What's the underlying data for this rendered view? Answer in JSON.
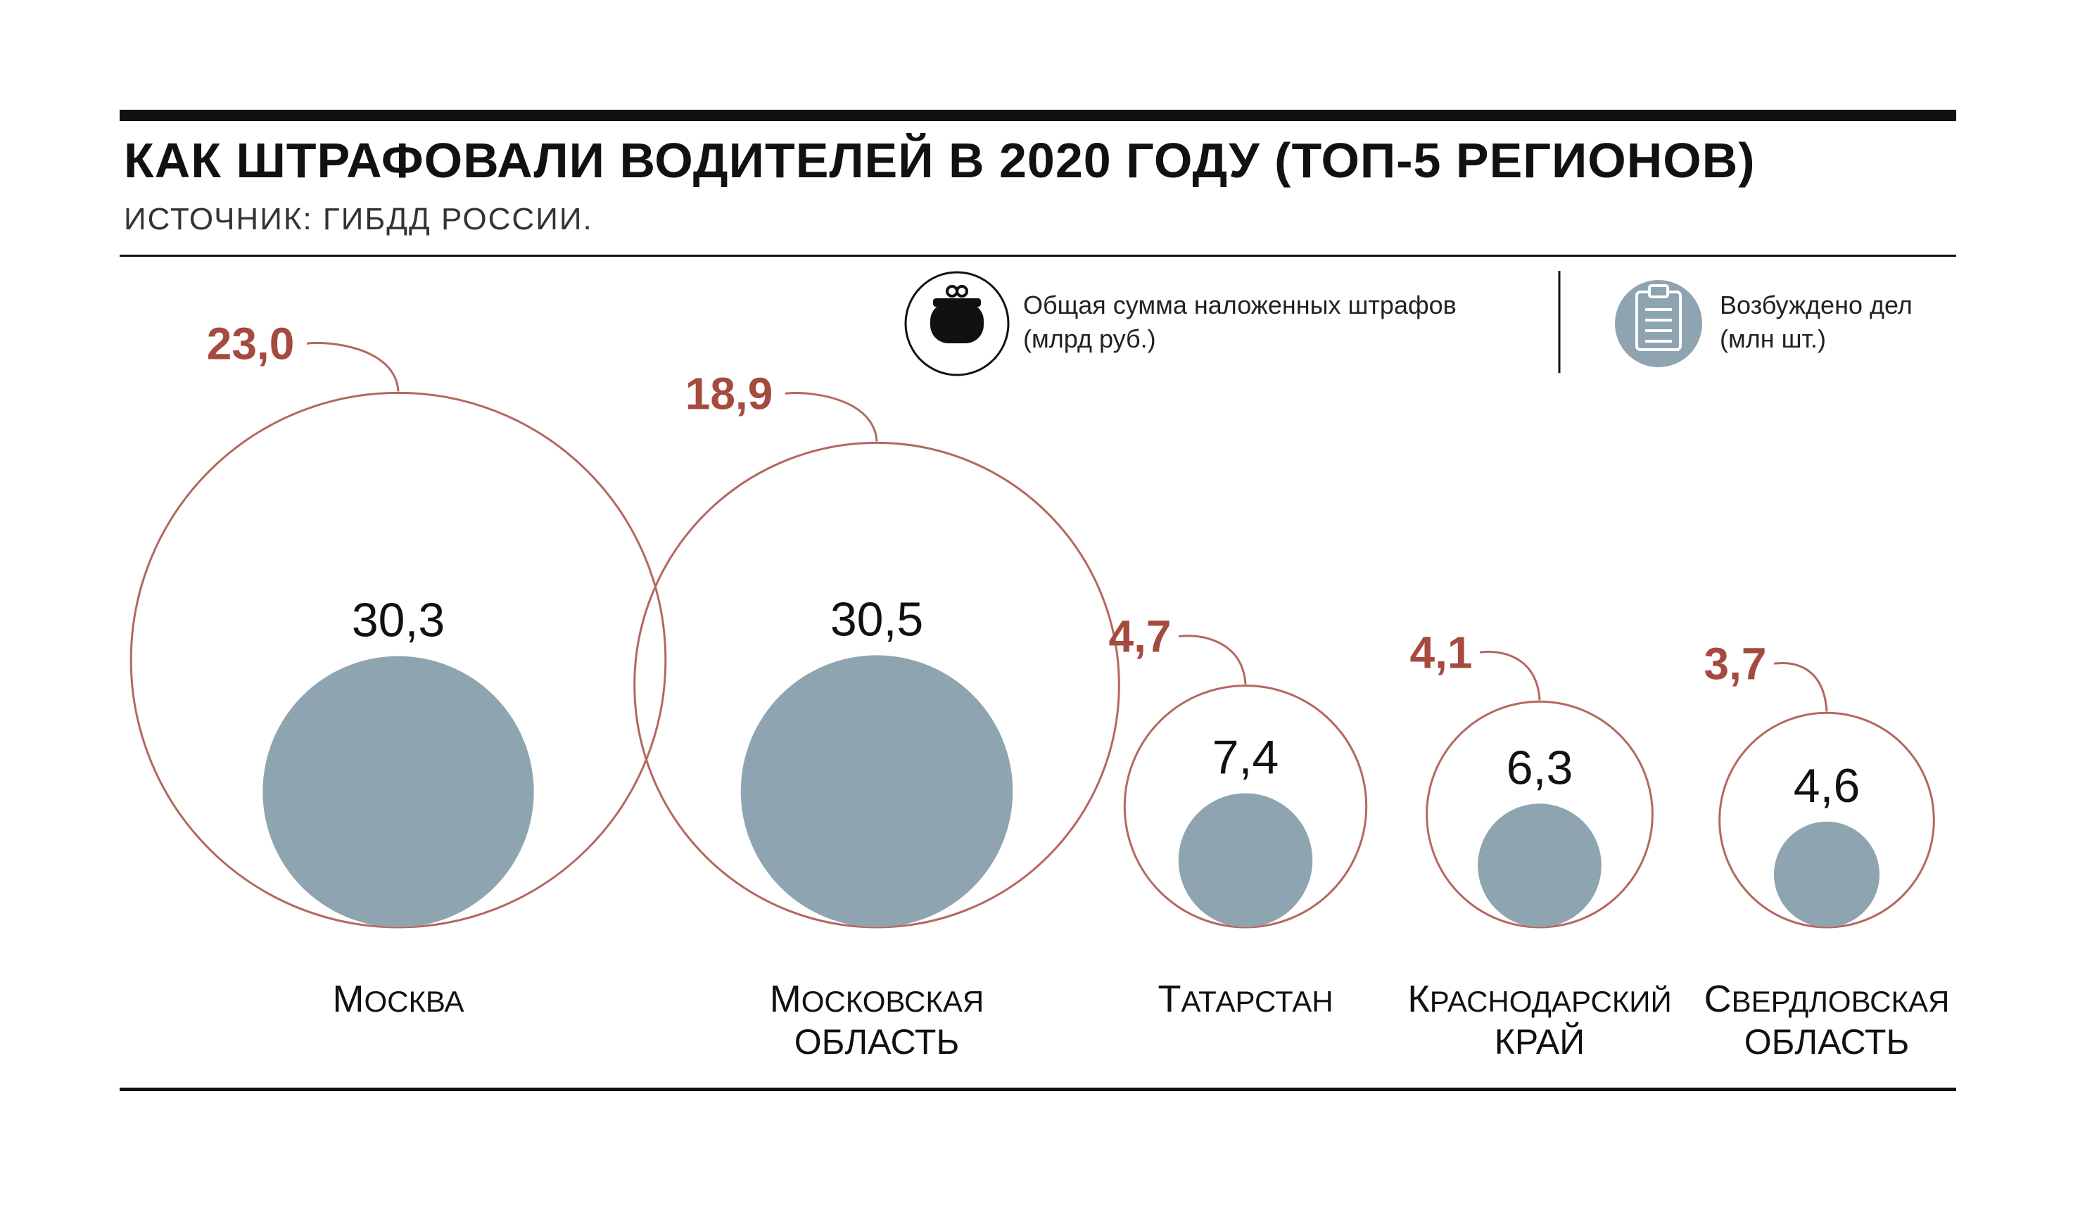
{
  "title": "КАК ШТРАФОВАЛИ ВОДИТЕЛЕЙ В 2020 ГОДУ (ТОП-5 РЕГИОНОВ)",
  "subtitle": "ИСТОЧНИК: ГИБДД РОССИИ.",
  "legend": {
    "fines_line1": "Общая сумма наложенных штрафов",
    "fines_line2": "(млрд руб.)",
    "fines_icon": "purse-icon",
    "cases_line1": "Возбуждено дел",
    "cases_line2": "(млн шт.)",
    "cases_icon": "clipboard-icon"
  },
  "colors": {
    "fines": "#a54a3e",
    "fines_outline": "#b5675f",
    "cases": "#8ea4b1",
    "text": "#111111",
    "rule": "#111111"
  },
  "chart_data": {
    "type": "bubble",
    "series": [
      {
        "name": "Общая сумма наложенных штрафов (млрд руб.)",
        "values": [
          23.0,
          18.9,
          4.7,
          4.1,
          3.7
        ],
        "labels": [
          "23,0",
          "18,9",
          "4,7",
          "4,1",
          "3,7"
        ]
      },
      {
        "name": "Возбуждено дел (млн шт.)",
        "values": [
          30.3,
          30.5,
          7.4,
          6.3,
          4.6
        ],
        "labels": [
          "30,3",
          "30,5",
          "7,4",
          "6,3",
          "4,6"
        ]
      }
    ],
    "categories": [
      {
        "line1": "Москва",
        "line2": ""
      },
      {
        "line1": "Московская",
        "line2": "область"
      },
      {
        "line1": "Татарстан",
        "line2": ""
      },
      {
        "line1": "Краснодарский",
        "line2": "край"
      },
      {
        "line1": "Свердловская",
        "line2": "область"
      }
    ]
  }
}
